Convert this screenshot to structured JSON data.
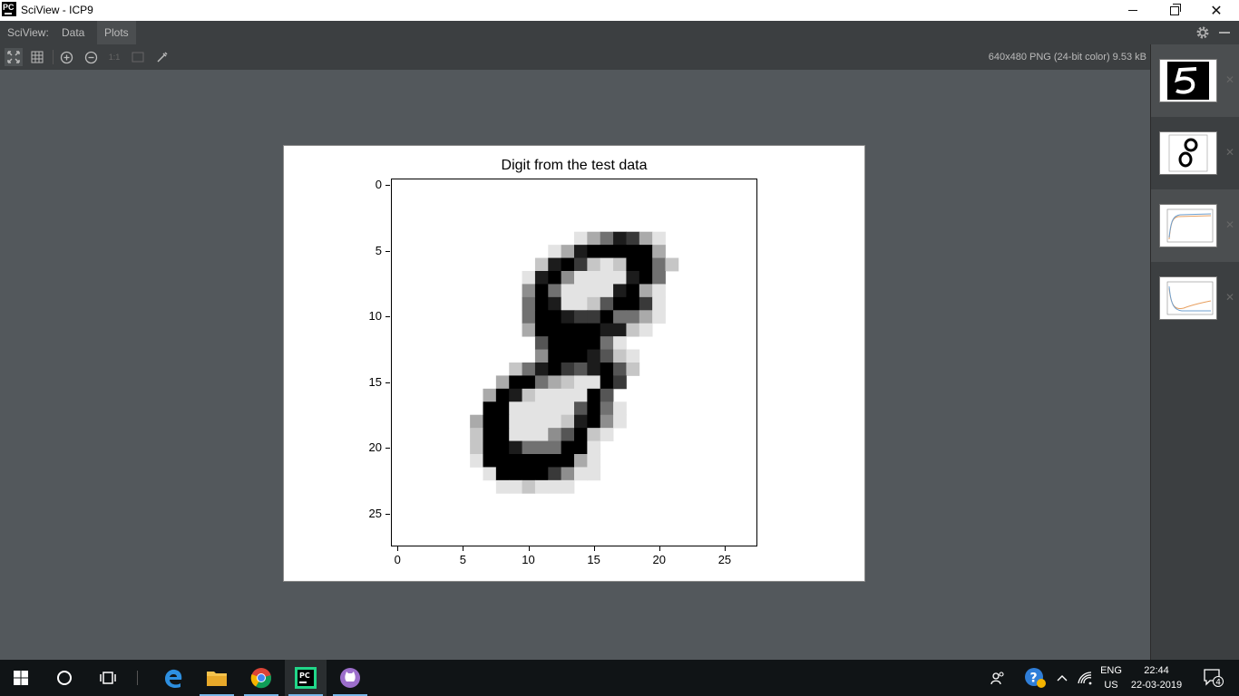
{
  "window": {
    "title": "SciView - ICP9"
  },
  "menu": {
    "sciview": "SciView:",
    "data": "Data",
    "plots": "Plots"
  },
  "toolbar": {
    "actual_size": "1:1",
    "image_info": "640x480 PNG (24-bit color) 9.53 kB"
  },
  "plot": {
    "title": "Digit from the test data"
  },
  "chart_data": {
    "type": "heatmap",
    "title": "Digit from the test data",
    "colormap": "gray_r",
    "shape": [
      28,
      28
    ],
    "xlim": [
      -0.5,
      27.5
    ],
    "ylim": [
      27.5,
      -0.5
    ],
    "xticks": [
      0,
      5,
      10,
      15,
      20,
      25
    ],
    "yticks": [
      0,
      5,
      10,
      15,
      20,
      25
    ],
    "xticklabels": [
      "0",
      "5",
      "10",
      "15",
      "20",
      "25"
    ],
    "yticklabels": [
      "0",
      "5",
      "10",
      "15",
      "20",
      "25"
    ],
    "rows": [
      "............................",
      "............................",
      "............................",
      "............................",
      "..............1358731.......",
      "............138999993.......",
      "...........28972129952......",
      "..........18941111895.......",
      "..........49511118931.......",
      "..........59811269971.......",
      "..........59987795531.......",
      "..........3999998821........",
      "...........6999951..........",
      "...........49998621.........",
      ".........2589768962.........",
      "........3995321197..........",
      ".......3982111196...........",
      ".......99111116951..........",
      "......399111128941..........",
      "......29911146921...........",
      "......2998555991............",
      "......1999999931............",
      ".......199997411............",
      "........112111..............",
      "............................",
      "............................",
      "............................",
      "............................"
    ]
  },
  "thumbnails": [
    {
      "name": "mnist-5"
    },
    {
      "name": "mnist-8"
    },
    {
      "name": "accuracy-plot"
    },
    {
      "name": "loss-plot"
    }
  ],
  "tray": {
    "lang": "ENG",
    "region": "US",
    "time": "22:44",
    "date": "22-03-2019",
    "notifications": "4"
  },
  "colors": {
    "accent": "#78b6e8",
    "panel": "#3c3f41",
    "canvas": "#53585c"
  }
}
